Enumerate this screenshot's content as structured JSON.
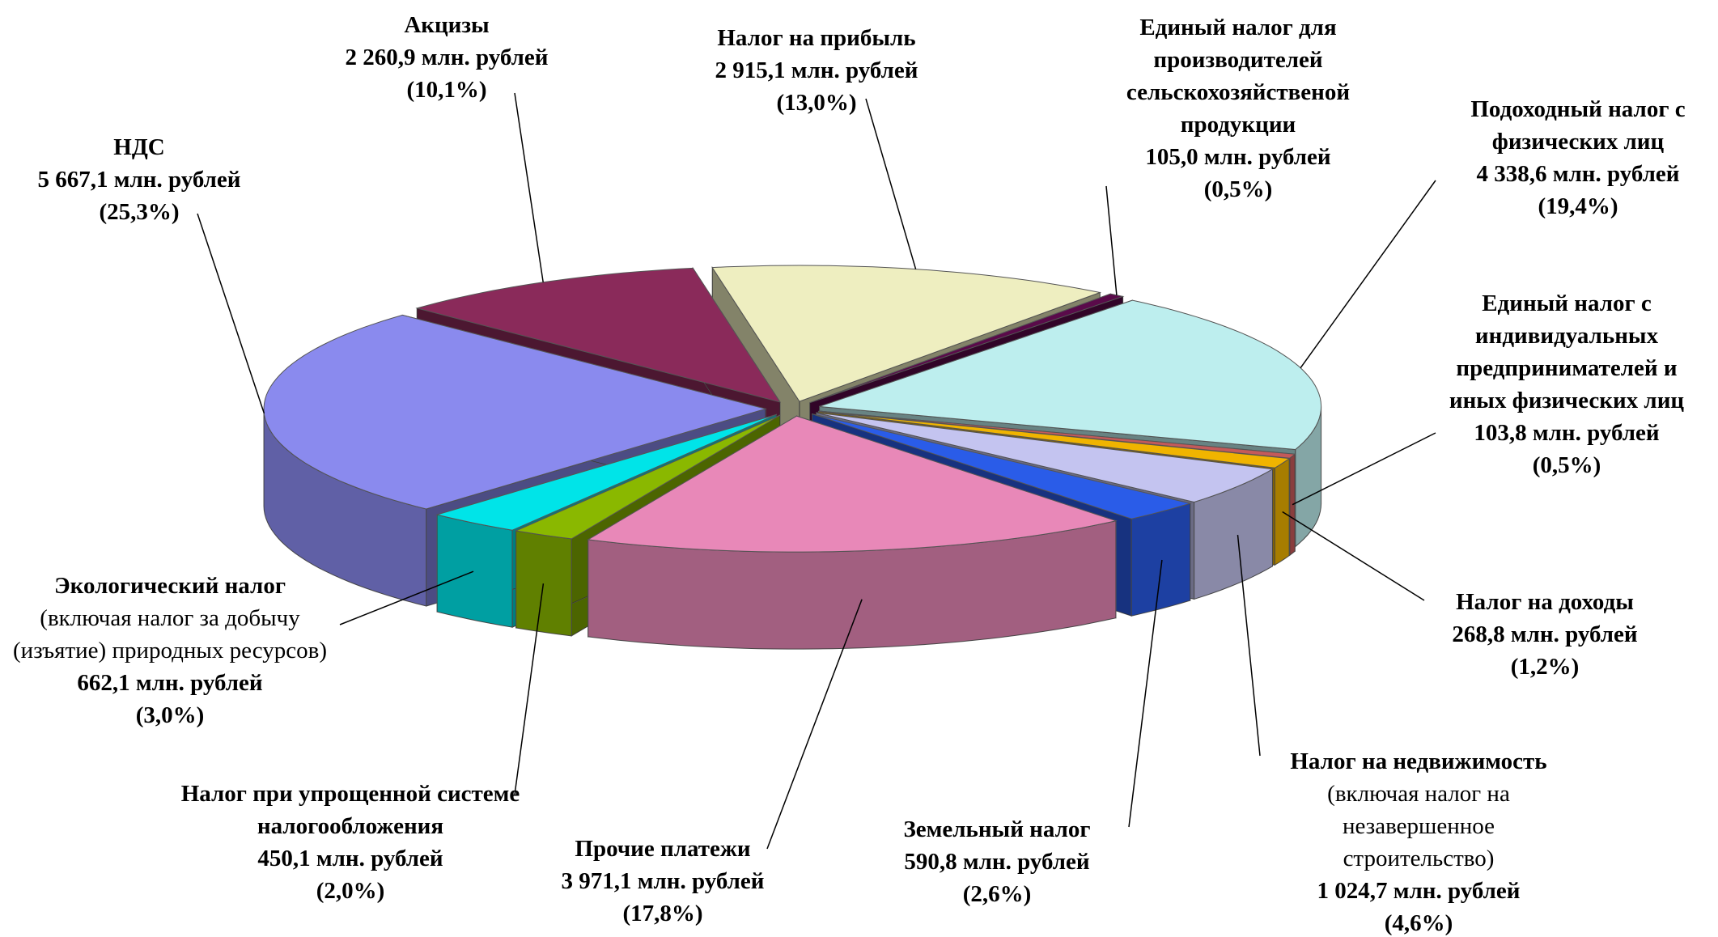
{
  "chart_data": {
    "type": "pie3d",
    "categories": [
      "Налог на прибыль",
      "Единый налог для производителей сельскохозяйственой продукции",
      "Подоходный налог с физических лиц",
      "Единый налог с индивидуальных предпринимателей и иных физических лиц",
      "Налог на доходы",
      "Налог на недвижимость",
      "Земельный налог",
      "Прочие платежи",
      "Налог при упрощенной системе налогообложения",
      "Экологический налог",
      "НДС",
      "Акцизы"
    ],
    "notes": [
      null,
      null,
      null,
      null,
      null,
      "(включая налог на незавершенное строительство)",
      null,
      null,
      null,
      "(включая налог за добычу (изъятие) природных ресурсов)",
      null,
      null
    ],
    "values": [
      2915.1,
      105.0,
      4338.6,
      103.8,
      268.8,
      1024.7,
      590.8,
      3971.1,
      450.1,
      662.1,
      5667.1,
      2260.9
    ],
    "value_labels": [
      "2 915,1 млн. рублей",
      "105,0 млн. рублей",
      "4 338,6 млн. рублей",
      "103,8 млн. рублей",
      "268,8 млн. рублей",
      "1 024,7 млн. рублей",
      "590,8 млн. рублей",
      "3 971,1 млн. рублей",
      "450,1 млн. рублей",
      "662,1 млн. рублей",
      "5 667,1 млн. рублей",
      "2 260,9 млн. рублей"
    ],
    "percents": [
      13.0,
      0.5,
      19.4,
      0.5,
      1.2,
      4.6,
      2.6,
      17.8,
      2.0,
      3.0,
      25.3,
      10.1
    ],
    "percent_labels": [
      "(13,0%)",
      "(0,5%)",
      "(19,4%)",
      "(0,5%)",
      "(1,2%)",
      "(4,6%)",
      "(2,6%)",
      "(17,8%)",
      "(2,0%)",
      "(3,0%)",
      "(25,3%)",
      "(10,1%)"
    ],
    "colors": [
      "#eeeec0",
      "#5a0a4a",
      "#bdeeee",
      "#c45a5a",
      "#f0b400",
      "#c4c4f0",
      "#2a5ce8",
      "#e888b8",
      "#8ab800",
      "#00e4e8",
      "#8a8aee",
      "#8a2a5a"
    ]
  }
}
